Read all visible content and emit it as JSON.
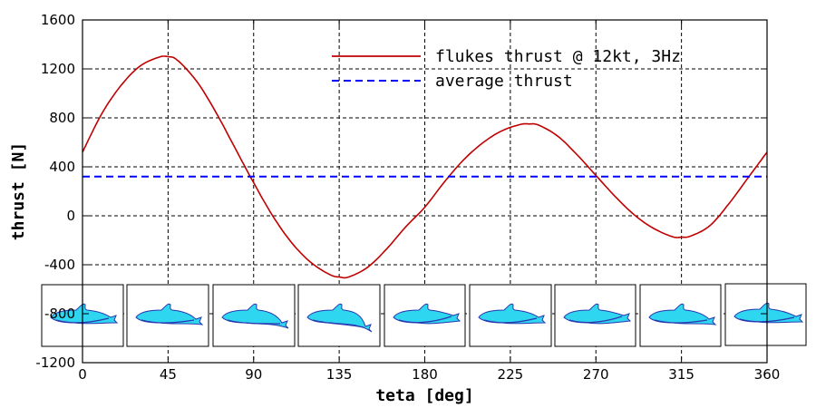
{
  "chart_data": {
    "type": "line",
    "xlabel": "teta [deg]",
    "ylabel": "thrust [N]",
    "xlim": [
      0,
      360
    ],
    "ylim": [
      -1200,
      1600
    ],
    "xticks": [
      0,
      45,
      90,
      135,
      180,
      225,
      270,
      315,
      360
    ],
    "yticks": [
      -1200,
      -800,
      -400,
      0,
      400,
      800,
      1200,
      1600
    ],
    "xtick_labels": [
      "0",
      "45",
      "90",
      "135",
      "180",
      "225",
      "270",
      "315",
      "360"
    ],
    "ytick_labels": [
      "-1200",
      "-800",
      "-400",
      "0",
      "400",
      "800",
      "1200",
      "1600"
    ],
    "grid": true,
    "legend_position": "top-right",
    "series": [
      {
        "name": "flukes thrust @ 12kt, 3Hz",
        "color": "#c00000",
        "style": "solid",
        "x": [
          0,
          10,
          20,
          30,
          40,
          45,
          50,
          60,
          70,
          80,
          90,
          100,
          110,
          120,
          130,
          135,
          140,
          150,
          160,
          170,
          180,
          190,
          200,
          210,
          220,
          230,
          235,
          240,
          250,
          260,
          270,
          280,
          290,
          300,
          310,
          315,
          320,
          330,
          340,
          350,
          360
        ],
        "y": [
          520,
          830,
          1060,
          1220,
          1295,
          1300,
          1270,
          1100,
          850,
          560,
          270,
          0,
          -220,
          -380,
          -480,
          -500,
          -500,
          -420,
          -270,
          -90,
          70,
          270,
          450,
          590,
          690,
          745,
          750,
          740,
          650,
          500,
          330,
          160,
          10,
          -100,
          -170,
          -175,
          -165,
          -80,
          100,
          310,
          520
        ]
      },
      {
        "name": "average thrust",
        "color": "#0000ff",
        "style": "dashed",
        "x": [
          0,
          360
        ],
        "y": [
          320,
          320
        ]
      }
    ],
    "inset_icons": [
      "dolphin-icon",
      "dolphin-icon",
      "dolphin-icon",
      "dolphin-icon",
      "dolphin-icon",
      "dolphin-icon",
      "dolphin-icon",
      "dolphin-icon",
      "dolphin-icon"
    ]
  }
}
